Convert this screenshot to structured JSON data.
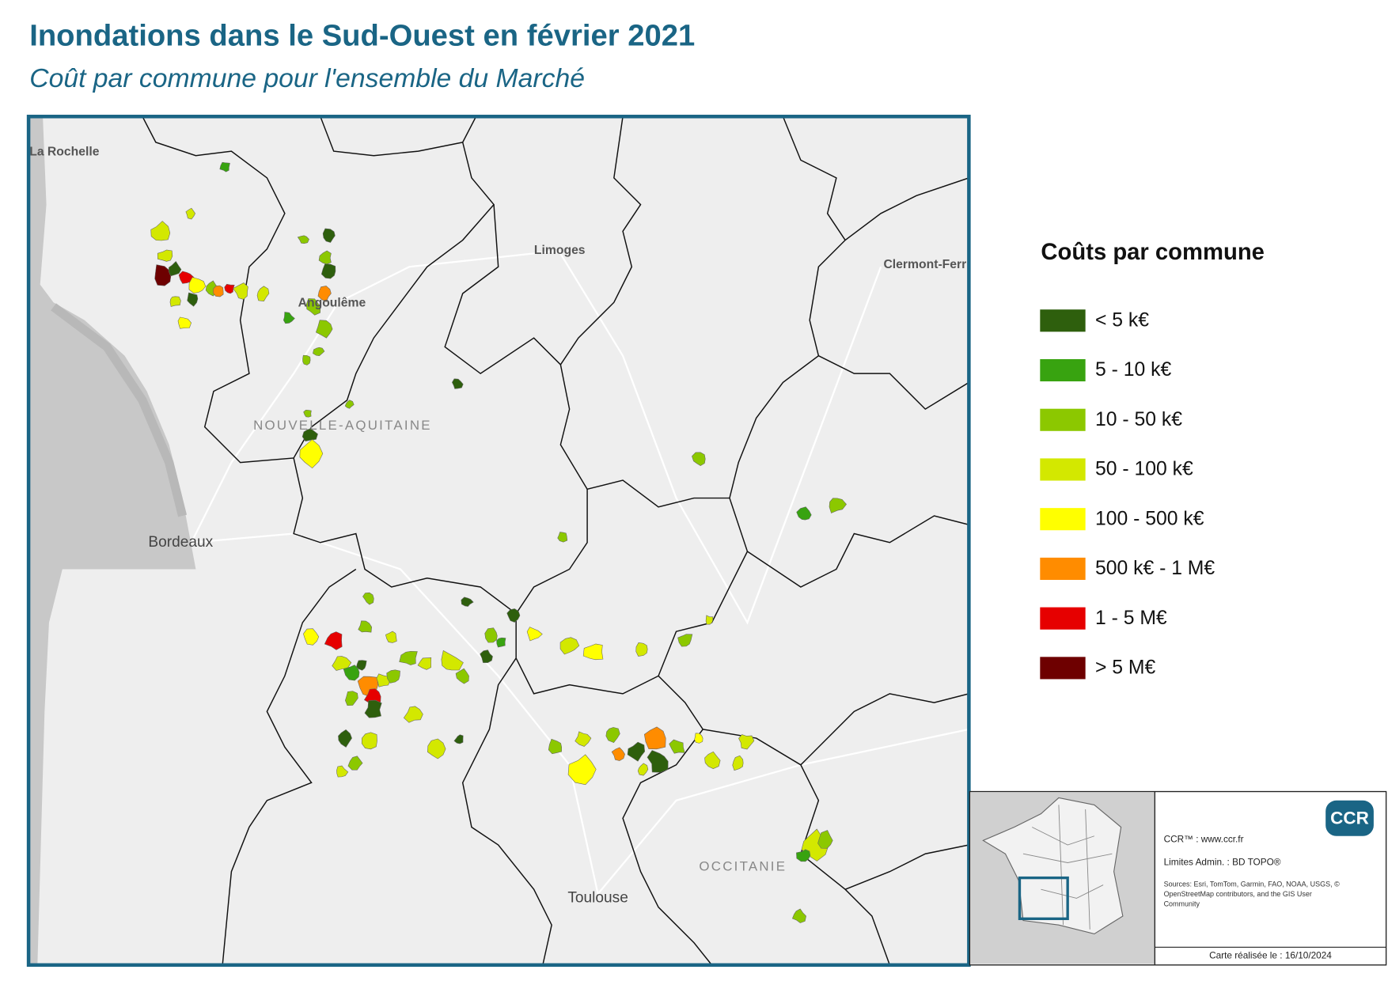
{
  "header": {
    "title": "Inondations dans le Sud-Ouest en février 2021",
    "subtitle": "Coût par commune pour l'ensemble du Marché"
  },
  "map": {
    "labels": [
      "La Rochelle",
      "Limoges",
      "Clermont-Ferr",
      "Angoulême",
      "NOUVELLE-AQUITAINE",
      "Bordeaux",
      "Toulouse",
      "OCCITANIE"
    ]
  },
  "legend": {
    "title": "Coûts par commune",
    "items": [
      {
        "label": "< 5 k€",
        "color": "#2e5f0d"
      },
      {
        "label": "5 - 10 k€",
        "color": "#38a310"
      },
      {
        "label": "10 - 50 k€",
        "color": "#8cc800"
      },
      {
        "label": "50 - 100 k€",
        "color": "#d3e800"
      },
      {
        "label": "100 - 500 k€",
        "color": "#ffff00"
      },
      {
        "label": "500 k€ - 1 M€",
        "color": "#ff8c00"
      },
      {
        "label": "1 - 5 M€",
        "color": "#e60000"
      },
      {
        "label": "> 5 M€",
        "color": "#6e0000"
      }
    ]
  },
  "inset": {
    "logo": "CCR",
    "ccr": "CCR™ : www.ccr.fr",
    "limits": "Limites Admin. : BD TOPO®",
    "sources": "Sources: Esri, TomTom, Garmin, FAO, NOAA, USGS, © OpenStreetMap contributors, and the GIS User Community",
    "date": "Carte réalisée le : 16/10/2024"
  }
}
